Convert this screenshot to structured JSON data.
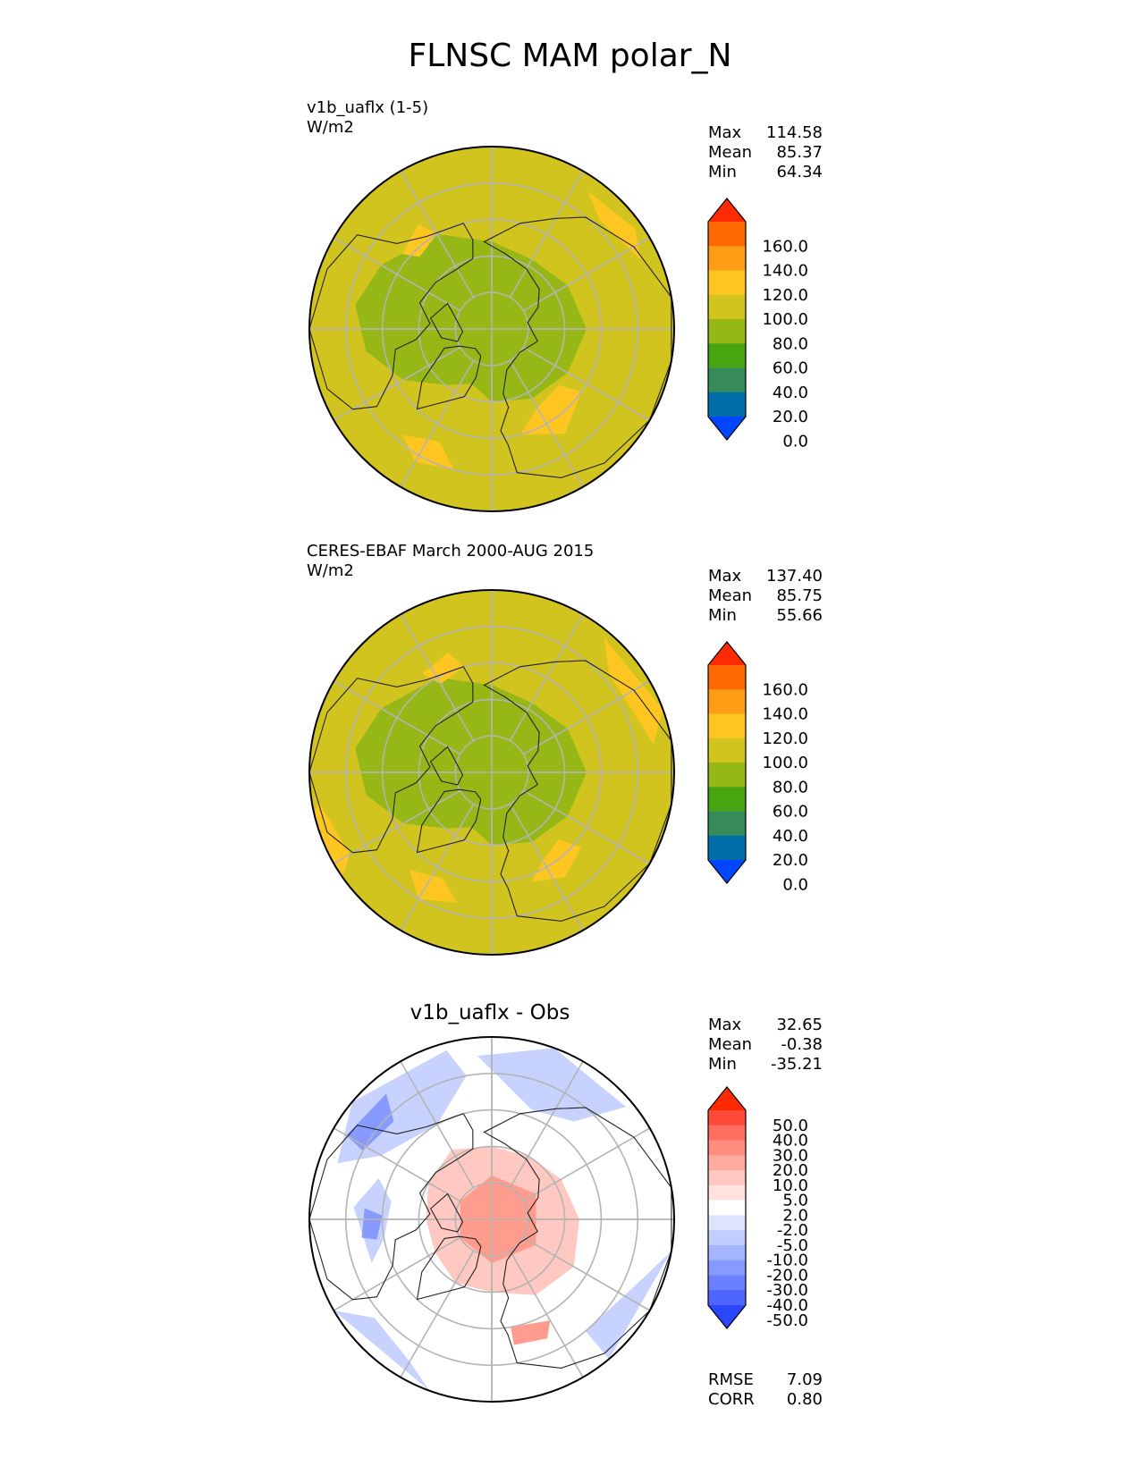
{
  "title": "FLNSC MAM polar_N",
  "panels": [
    {
      "id": "test",
      "title_line1": "v1b_uaflx (1-5)",
      "title_line2": "W/m2",
      "stats": [
        {
          "label": "Max",
          "value": "114.58"
        },
        {
          "label": "Mean",
          "value": "85.37"
        },
        {
          "label": "Min",
          "value": "64.34"
        }
      ],
      "colorbar": {
        "labels": [
          "160.0",
          "140.0",
          "120.0",
          "100.0",
          "80.0",
          "60.0",
          "40.0",
          "20.0",
          "0.0"
        ],
        "colors": [
          "#ff2a00",
          "#ff6a00",
          "#ff9e14",
          "#ffc622",
          "#d2c41e",
          "#96b816",
          "#48a512",
          "#378a5a",
          "#006ea6",
          "#0046ff"
        ]
      }
    },
    {
      "id": "ref",
      "title_line1": "CERES-EBAF March 2000-AUG 2015",
      "title_line2": "W/m2",
      "stats": [
        {
          "label": "Max",
          "value": "137.40"
        },
        {
          "label": "Mean",
          "value": "85.75"
        },
        {
          "label": "Min",
          "value": "55.66"
        }
      ],
      "colorbar": {
        "labels": [
          "160.0",
          "140.0",
          "120.0",
          "100.0",
          "80.0",
          "60.0",
          "40.0",
          "20.0",
          "0.0"
        ],
        "colors": [
          "#ff2a00",
          "#ff6a00",
          "#ff9e14",
          "#ffc622",
          "#d2c41e",
          "#96b816",
          "#48a512",
          "#378a5a",
          "#006ea6",
          "#0046ff"
        ]
      }
    },
    {
      "id": "diff",
      "title": "v1b_uaflx - Obs",
      "stats": [
        {
          "label": "Max",
          "value": "32.65"
        },
        {
          "label": "Mean",
          "value": "-0.38"
        },
        {
          "label": "Min",
          "value": "-35.21"
        }
      ],
      "extra_stats": [
        {
          "label": "RMSE",
          "value": "7.09"
        },
        {
          "label": "CORR",
          "value": "0.80"
        }
      ],
      "colorbar": {
        "labels": [
          "50.0",
          "40.0",
          "30.0",
          "20.0",
          "10.0",
          "5.0",
          "2.0",
          "-2.0",
          "-5.0",
          "-10.0",
          "-20.0",
          "-30.0",
          "-40.0",
          "-50.0"
        ],
        "colors": [
          "#ff2a00",
          "#ff4a3a",
          "#ff6e5e",
          "#ff8c7e",
          "#ffaaa0",
          "#ffc8c0",
          "#ffe2dc",
          "#ffffff",
          "#dde4ff",
          "#c2ccff",
          "#a4b4ff",
          "#869aff",
          "#6a80ff",
          "#4e66ff",
          "#2a46ff"
        ]
      }
    }
  ],
  "map_colors": {
    "base_fill": "#d2c41e",
    "green_region": "#96b816",
    "warm_region": "#ffc622",
    "diff_pos_light": "#ffc8c0",
    "diff_pos": "#ff9c8e",
    "diff_neg_light": "#c8d2ff",
    "diff_neg": "#869aff",
    "grid": "#b4b4b4",
    "coast": "#222222"
  }
}
